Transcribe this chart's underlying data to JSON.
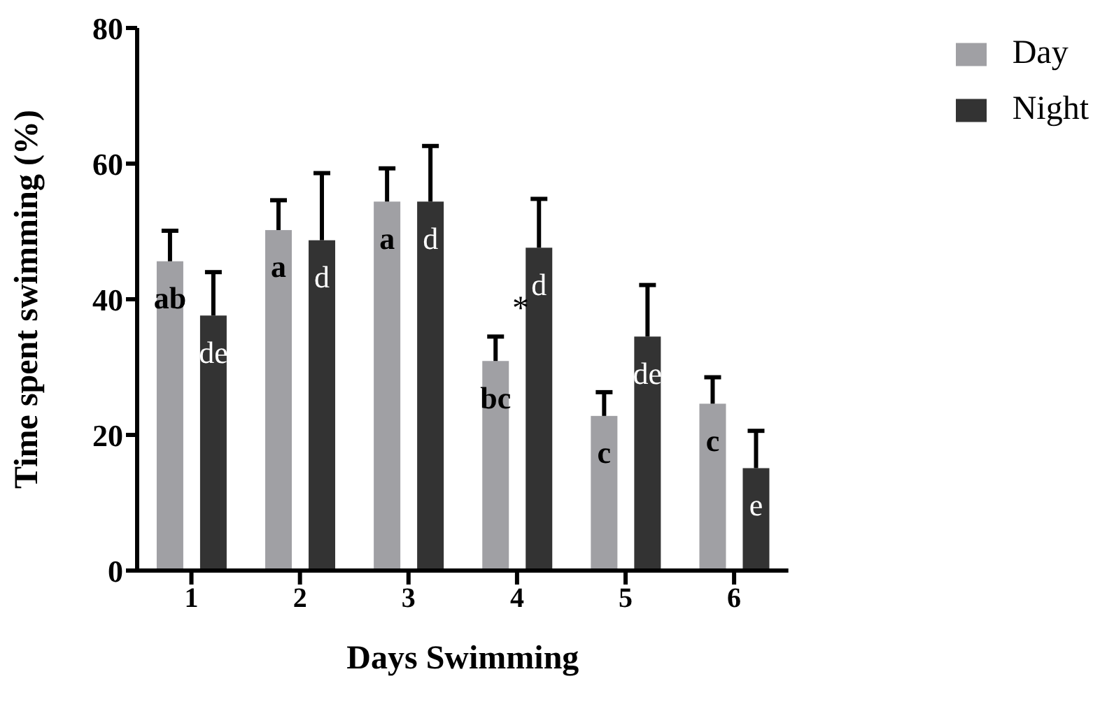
{
  "chart_data": {
    "type": "bar",
    "xlabel": "Days Swimming",
    "ylabel": "Time spent swimming (%)",
    "categories": [
      "1",
      "2",
      "3",
      "4",
      "5",
      "6"
    ],
    "series": [
      {
        "name": "Day",
        "color": "#a0a0a4",
        "values": [
          45.6,
          50.2,
          54.4,
          30.9,
          22.8,
          24.6
        ],
        "errors": [
          [
            45.6,
            50.1
          ],
          [
            50.2,
            54.6
          ],
          [
            54.4,
            59.3
          ],
          [
            30.9,
            34.5
          ],
          [
            22.8,
            26.3
          ],
          [
            24.6,
            28.5
          ]
        ],
        "value_labels": [
          "ab",
          "a",
          "a",
          "bc",
          "c",
          "c"
        ]
      },
      {
        "name": "Night",
        "color": "#333333",
        "values": [
          37.6,
          48.7,
          54.4,
          47.6,
          34.5,
          15.1
        ],
        "errors": [
          [
            37.6,
            44.0
          ],
          [
            48.7,
            58.6
          ],
          [
            54.4,
            62.6
          ],
          [
            47.6,
            54.8
          ],
          [
            34.5,
            42.1
          ],
          [
            15.1,
            20.6
          ]
        ],
        "value_labels": [
          "de",
          "d",
          "d",
          "d",
          "de",
          "e"
        ]
      }
    ],
    "annotations": [
      "*"
    ],
    "ylim": [
      0,
      80
    ],
    "yticks": [
      0,
      20,
      40,
      60,
      80
    ],
    "grid": false,
    "legend": "top right"
  }
}
